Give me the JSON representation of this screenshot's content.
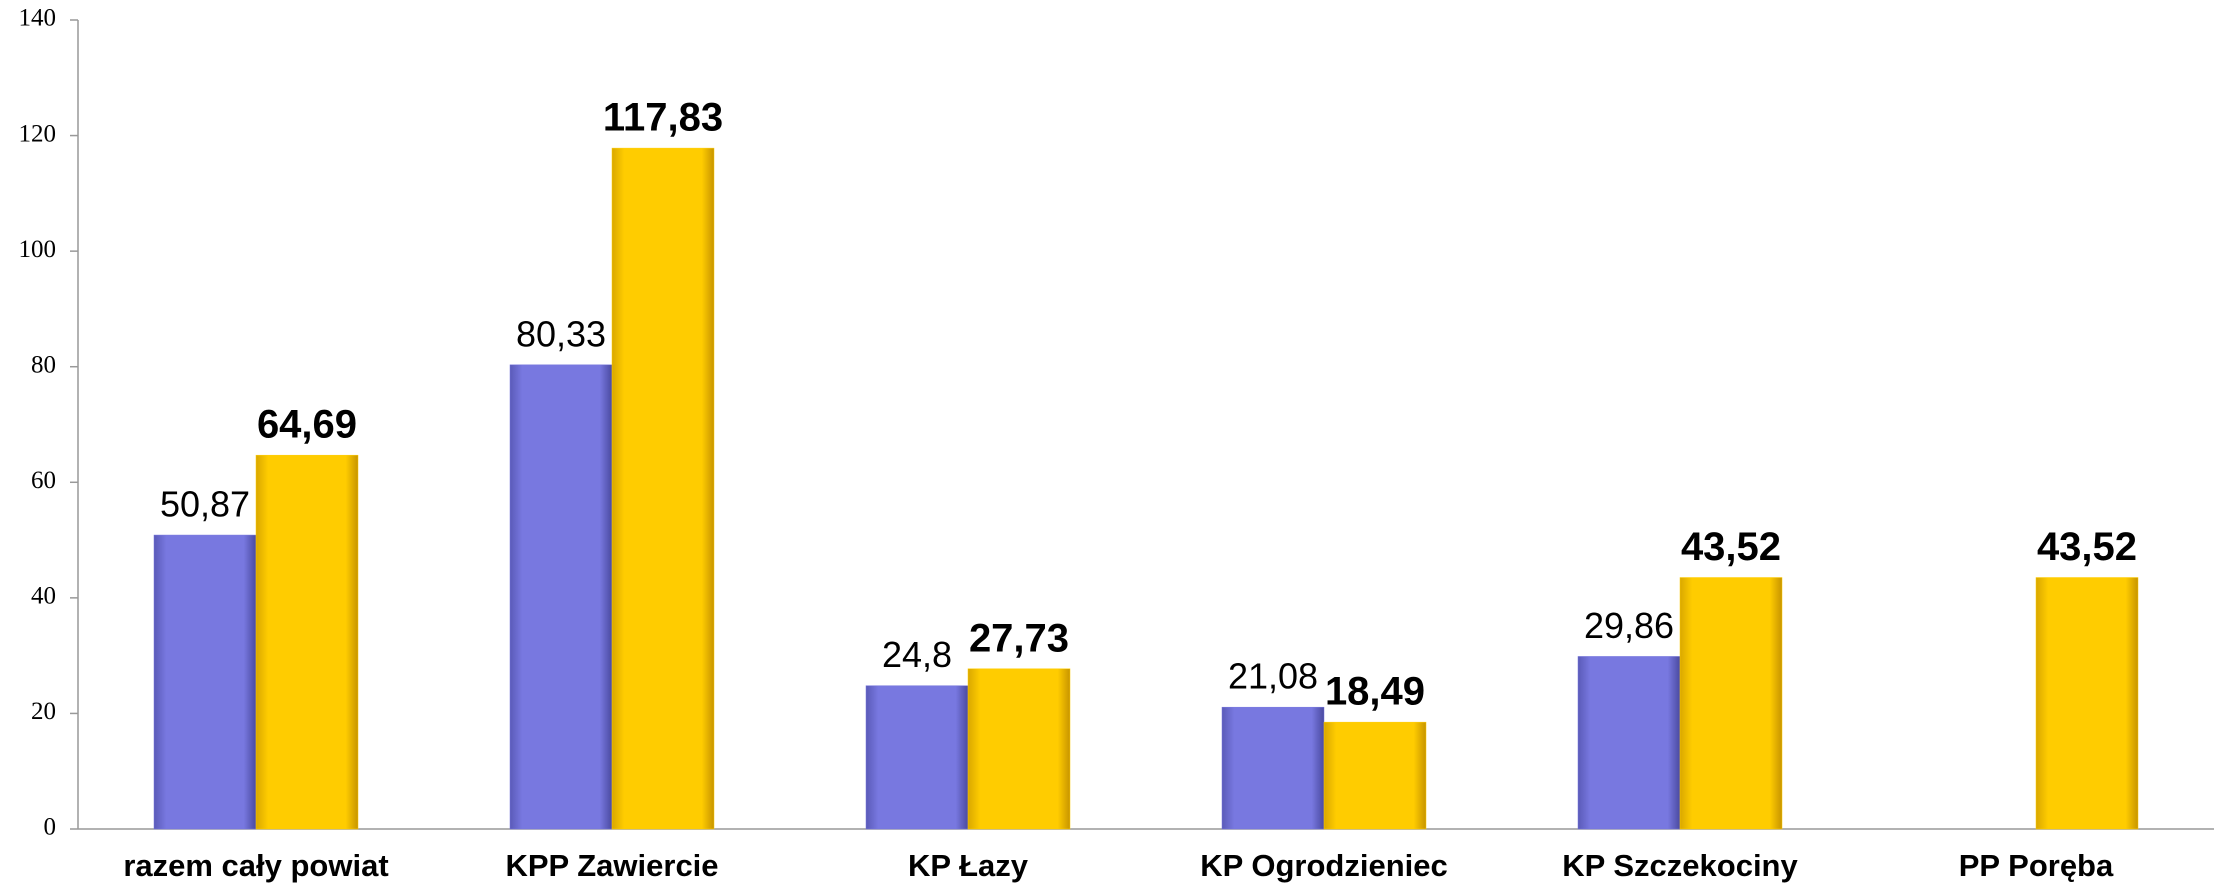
{
  "chart_data": {
    "type": "bar",
    "categories": [
      "razem cały powiat",
      "KPP Zawiercie",
      "KP Łazy",
      "KP Ogrodzieniec",
      "KP Szczekociny",
      "PP Poręba"
    ],
    "series": [
      {
        "color": "#7575dd",
        "values": [
          50.87,
          80.33,
          24.8,
          21.08,
          29.86,
          null
        ],
        "value_labels": [
          "50,87",
          "80,33",
          "24,8",
          "21,08",
          "29,86",
          null
        ]
      },
      {
        "color": "#ffcc00",
        "values": [
          64.69,
          117.83,
          27.73,
          18.49,
          43.52,
          43.52
        ],
        "value_labels": [
          "64,69",
          "117,83",
          "27,73",
          "18,49",
          "43,52",
          "43,52"
        ]
      }
    ],
    "ylim": [
      0,
      140
    ],
    "yticks": [
      0,
      20,
      40,
      60,
      80,
      100,
      120,
      140
    ],
    "grid": false
  }
}
